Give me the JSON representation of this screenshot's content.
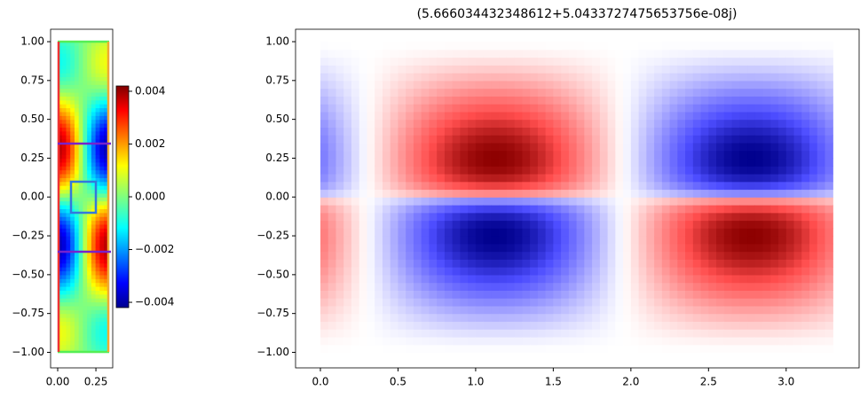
{
  "chart_data": [
    {
      "type": "heatmap",
      "colormap": "jet",
      "xlim": [
        -0.0465,
        0.36
      ],
      "ylim": [
        -1.1,
        1.08
      ],
      "xticks": [
        {
          "value": 0,
          "label": "0.00"
        },
        0.25
      ],
      "yticks": [
        {
          "value": -1,
          "label": "−1.00"
        },
        {
          "value": -0.75,
          "label": "−0.75"
        },
        {
          "value": -0.5,
          "label": "−0.50"
        },
        {
          "value": -0.25,
          "label": "−0.25"
        },
        {
          "value": 0,
          "label": "0.00"
        },
        0.25,
        {
          "value": 0.5,
          "label": "0.50"
        },
        0.75,
        {
          "value": 1,
          "label": "1.00"
        }
      ],
      "colorbar": {
        "lim": [
          -0.0042,
          0.0042
        ],
        "ticks": [
          {
            "value": -0.004,
            "label": "−0.004"
          },
          {
            "value": -0.002,
            "label": "−0.002"
          },
          {
            "value": 0,
            "label": "0.000"
          },
          0.002,
          0.004
        ]
      }
    },
    {
      "type": "heatmap",
      "colormap": "bwr",
      "title": "(5.666034432348612+5.0433727475653756e-08j)",
      "xlim": [
        -0.16,
        3.47
      ],
      "ylim": [
        -1.1,
        1.08
      ],
      "xticks": [
        {
          "value": 0,
          "label": "0.0"
        },
        0.5,
        {
          "value": 1,
          "label": "1.0"
        },
        1.5,
        {
          "value": 2,
          "label": "2.0"
        },
        2.5,
        {
          "value": 3,
          "label": "3.0"
        }
      ],
      "yticks": [
        {
          "value": -1,
          "label": "−1.00"
        },
        {
          "value": -0.75,
          "label": "−0.75"
        },
        {
          "value": -0.5,
          "label": "−0.50"
        },
        {
          "value": -0.25,
          "label": "−0.25"
        },
        {
          "value": 0,
          "label": "0.00"
        },
        0.25,
        {
          "value": 0.5,
          "label": "0.50"
        },
        0.75,
        {
          "value": 1,
          "label": "1.00"
        }
      ]
    }
  ]
}
